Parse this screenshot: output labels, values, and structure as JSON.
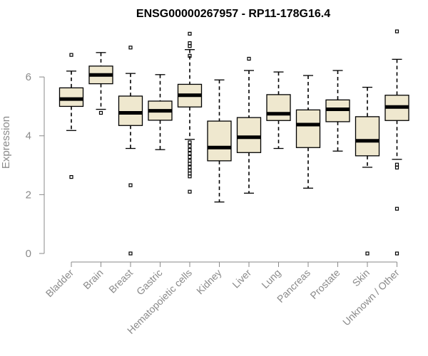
{
  "chart_data": {
    "type": "box",
    "title": "ENSG00000267957 - RP11-178G16.4",
    "ylabel": "Expression",
    "xlabel": "",
    "ylim": [
      0,
      7.6
    ],
    "yticks": [
      0,
      2,
      4,
      6
    ],
    "box_fill": "#efe8cf",
    "categories": [
      "Bladder",
      "Brain",
      "Breast",
      "Gastric",
      "Hematopoietic cells",
      "Kidney",
      "Liver",
      "Lung",
      "Pancreas",
      "Prostate",
      "Skin",
      "Unknown / Other"
    ],
    "boxes": [
      {
        "whisker_low": 4.18,
        "q1": 5.0,
        "median": 5.25,
        "q3": 5.63,
        "whisker_high": 6.2,
        "outliers": [
          6.75,
          2.6
        ]
      },
      {
        "whisker_low": 4.9,
        "q1": 5.77,
        "median": 6.07,
        "q3": 6.37,
        "whisker_high": 6.83,
        "outliers": [
          4.78
        ]
      },
      {
        "whisker_low": 3.57,
        "q1": 4.35,
        "median": 4.78,
        "q3": 5.35,
        "whisker_high": 6.12,
        "outliers": [
          7.0,
          2.32,
          0.0
        ]
      },
      {
        "whisker_low": 3.53,
        "q1": 4.53,
        "median": 4.85,
        "q3": 5.18,
        "whisker_high": 6.08,
        "outliers": []
      },
      {
        "whisker_low": 3.88,
        "q1": 4.98,
        "median": 5.38,
        "q3": 5.75,
        "whisker_high": 6.93,
        "outliers": [
          7.47,
          7.15,
          7.05,
          6.72,
          3.78,
          3.65,
          3.52,
          3.4,
          3.28,
          3.15,
          3.05,
          2.93,
          2.82,
          2.72,
          2.62,
          2.1
        ]
      },
      {
        "whisker_low": 1.75,
        "q1": 3.15,
        "median": 3.6,
        "q3": 4.5,
        "whisker_high": 5.9,
        "outliers": []
      },
      {
        "whisker_low": 2.05,
        "q1": 3.43,
        "median": 3.95,
        "q3": 4.62,
        "whisker_high": 6.22,
        "outliers": [
          6.62
        ]
      },
      {
        "whisker_low": 3.57,
        "q1": 4.52,
        "median": 4.75,
        "q3": 5.4,
        "whisker_high": 6.17,
        "outliers": []
      },
      {
        "whisker_low": 2.22,
        "q1": 3.6,
        "median": 4.38,
        "q3": 4.88,
        "whisker_high": 6.05,
        "outliers": []
      },
      {
        "whisker_low": 3.48,
        "q1": 4.48,
        "median": 4.9,
        "q3": 5.22,
        "whisker_high": 6.22,
        "outliers": []
      },
      {
        "whisker_low": 2.93,
        "q1": 3.32,
        "median": 3.83,
        "q3": 4.65,
        "whisker_high": 5.65,
        "outliers": [
          0.0
        ]
      },
      {
        "whisker_low": 3.2,
        "q1": 4.52,
        "median": 4.98,
        "q3": 5.38,
        "whisker_high": 6.6,
        "outliers": [
          7.55,
          3.02,
          2.92,
          1.52,
          0.0
        ]
      }
    ]
  }
}
